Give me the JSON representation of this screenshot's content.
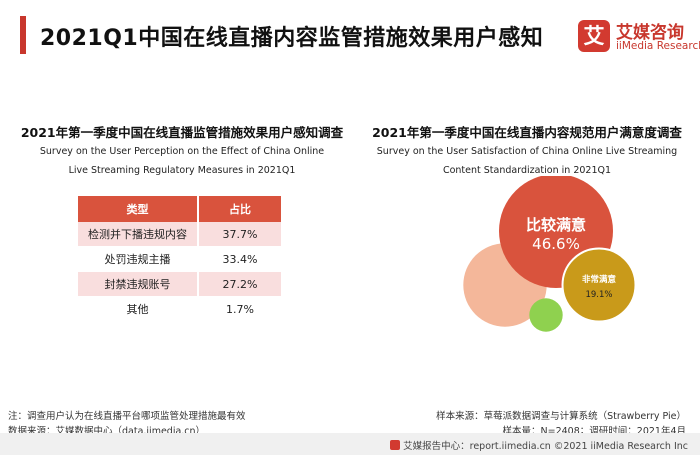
{
  "header": {
    "title": "2021Q1中国在线直播内容监管措施效果用户感知",
    "logo_mark": "艾",
    "logo_cn": "艾媒咨询",
    "logo_en": "iiMedia Research"
  },
  "left_panel": {
    "title": "2021年第一季度中国在线直播监管措施效果用户感知调查",
    "subtitle_line1": "Survey on the User Perception on the Effect of China Online",
    "subtitle_line2": "Live Streaming Regulatory Measures in 2021Q1"
  },
  "right_panel": {
    "title": "2021年第一季度中国在线直播内容规范用户满意度调查",
    "subtitle_line1": "Survey on the User Satisfaction of China Online Live Streaming",
    "subtitle_line2": "Content Standardization in 2021Q1"
  },
  "chart_data": [
    {
      "type": "table",
      "columns": [
        "类型",
        "占比"
      ],
      "rows": [
        [
          "检测并下播违规内容",
          "37.7%"
        ],
        [
          "处罚违规主播",
          "33.4%"
        ],
        [
          "封禁违规账号",
          "27.2%"
        ],
        [
          "其他",
          "1.7%"
        ]
      ]
    },
    {
      "type": "bubble",
      "bubbles": [
        {
          "label": "比较满意",
          "value": 46.6,
          "value_text": "46.6%",
          "color": "#d9533d"
        },
        {
          "label": "非常满意",
          "value": 19.1,
          "value_text": "19.1%",
          "color": "#c99a1a"
        },
        {
          "label": "",
          "value": 25.0,
          "value_text": "",
          "color": "#f4b79a"
        },
        {
          "label": "",
          "value": 4.0,
          "value_text": "",
          "color": "#8fd14f"
        }
      ]
    }
  ],
  "footer": {
    "note": "注：调查用户认为在线直播平台哪项监管处理措施最有效",
    "source": "数据来源：艾媒数据中心（data.iimedia.cn）",
    "sample_source": "样本来源：草莓派数据调查与计算系统（Strawberry Pie）",
    "sample_size": "样本量：N=2408；调研时间：2021年4月",
    "copyright": "艾媒报告中心：report.iimedia.cn ©2021  iiMedia Research  Inc"
  }
}
